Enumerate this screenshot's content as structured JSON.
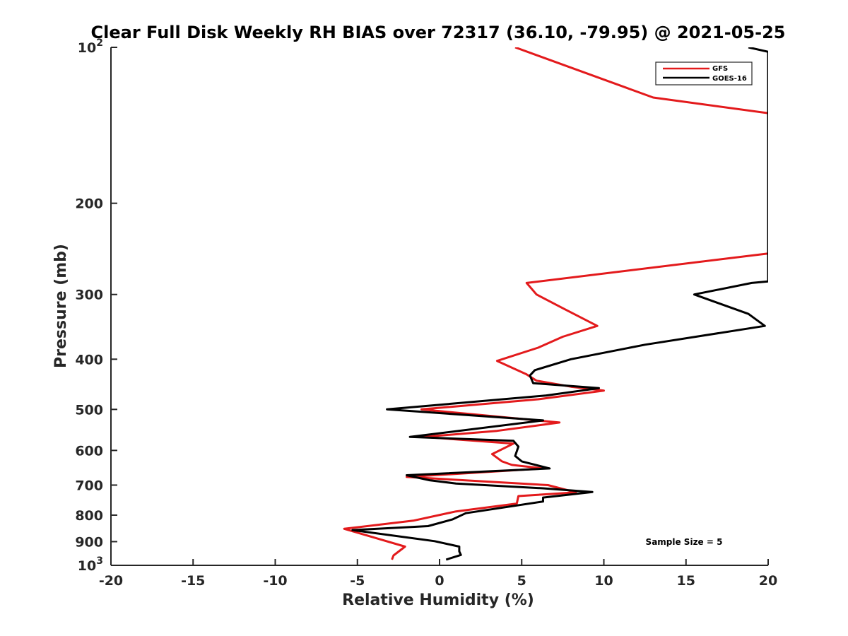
{
  "chart_data": {
    "type": "line",
    "title": "Clear Full Disk Weekly RH BIAS over 72317 (36.10, -79.95) @ 2021-05-25",
    "xlabel": "Relative Humidity (%)",
    "ylabel": "Pressure (mb)",
    "xlim": [
      -20,
      20
    ],
    "ylim": [
      100,
      1000
    ],
    "y_scale": "log",
    "y_reversed": true,
    "x_ticks": [
      "-20",
      "-15",
      "-10",
      "-5",
      "0",
      "5",
      "10",
      "15",
      "20"
    ],
    "y_ticks": [
      {
        "value": 100,
        "base": "10",
        "exp": "2"
      },
      {
        "value": 200,
        "base": "200",
        "exp": ""
      },
      {
        "value": 300,
        "base": "300",
        "exp": ""
      },
      {
        "value": 400,
        "base": "400",
        "exp": ""
      },
      {
        "value": 500,
        "base": "500",
        "exp": ""
      },
      {
        "value": 600,
        "base": "600",
        "exp": ""
      },
      {
        "value": 700,
        "base": "700",
        "exp": ""
      },
      {
        "value": 800,
        "base": "800",
        "exp": ""
      },
      {
        "value": 900,
        "base": "900",
        "exp": ""
      },
      {
        "value": 1000,
        "base": "10",
        "exp": "3"
      }
    ],
    "grid": false,
    "legend_position": "top-right",
    "annotation": "Sample Size = 5",
    "series": [
      {
        "name": "GFS",
        "color": "#e31a1c",
        "points": [
          [
            4.6,
            100
          ],
          [
            13.0,
            125
          ],
          [
            20.0,
            134
          ],
          [
            20.0,
            250
          ],
          [
            5.3,
            285
          ],
          [
            5.9,
            300
          ],
          [
            7.6,
            320
          ],
          [
            9.6,
            345
          ],
          [
            7.5,
            362
          ],
          [
            6.0,
            380
          ],
          [
            3.5,
            403
          ],
          [
            5.3,
            428
          ],
          [
            5.9,
            440
          ],
          [
            8.0,
            452
          ],
          [
            10.0,
            460
          ],
          [
            6.0,
            478
          ],
          [
            -1.1,
            500
          ],
          [
            7.3,
            530
          ],
          [
            3.5,
            550
          ],
          [
            -1.0,
            565
          ],
          [
            4.5,
            582
          ],
          [
            3.2,
            610
          ],
          [
            3.8,
            630
          ],
          [
            4.4,
            640
          ],
          [
            6.3,
            650
          ],
          [
            -2.0,
            675
          ],
          [
            6.6,
            700
          ],
          [
            8.3,
            723
          ],
          [
            4.8,
            735
          ],
          [
            4.7,
            760
          ],
          [
            1.0,
            787
          ],
          [
            -1.6,
            820
          ],
          [
            -5.8,
            850
          ],
          [
            -2.1,
            920
          ],
          [
            -2.8,
            957
          ],
          [
            -2.9,
            975
          ]
        ]
      },
      {
        "name": "GOES-16",
        "color": "#000000",
        "points": [
          [
            18.8,
            100
          ],
          [
            20.0,
            102
          ],
          [
            20.0,
            283
          ],
          [
            19.0,
            285
          ],
          [
            15.5,
            300
          ],
          [
            18.8,
            327
          ],
          [
            19.8,
            345
          ],
          [
            12.5,
            375
          ],
          [
            8.0,
            400
          ],
          [
            5.8,
            420
          ],
          [
            5.5,
            430
          ],
          [
            5.7,
            445
          ],
          [
            9.7,
            455
          ],
          [
            6.5,
            470
          ],
          [
            -3.2,
            500
          ],
          [
            6.3,
            525
          ],
          [
            -1.8,
            565
          ],
          [
            4.5,
            575
          ],
          [
            4.8,
            590
          ],
          [
            4.6,
            615
          ],
          [
            5.0,
            630
          ],
          [
            6.7,
            650
          ],
          [
            -2.0,
            670
          ],
          [
            -0.6,
            685
          ],
          [
            1.0,
            695
          ],
          [
            6.3,
            710
          ],
          [
            9.3,
            722
          ],
          [
            6.3,
            740
          ],
          [
            6.3,
            753
          ],
          [
            1.6,
            793
          ],
          [
            0.8,
            815
          ],
          [
            -0.7,
            840
          ],
          [
            -5.3,
            855
          ],
          [
            -0.3,
            898
          ],
          [
            1.2,
            920
          ],
          [
            1.2,
            940
          ],
          [
            1.3,
            955
          ],
          [
            0.4,
            975
          ]
        ]
      }
    ]
  }
}
